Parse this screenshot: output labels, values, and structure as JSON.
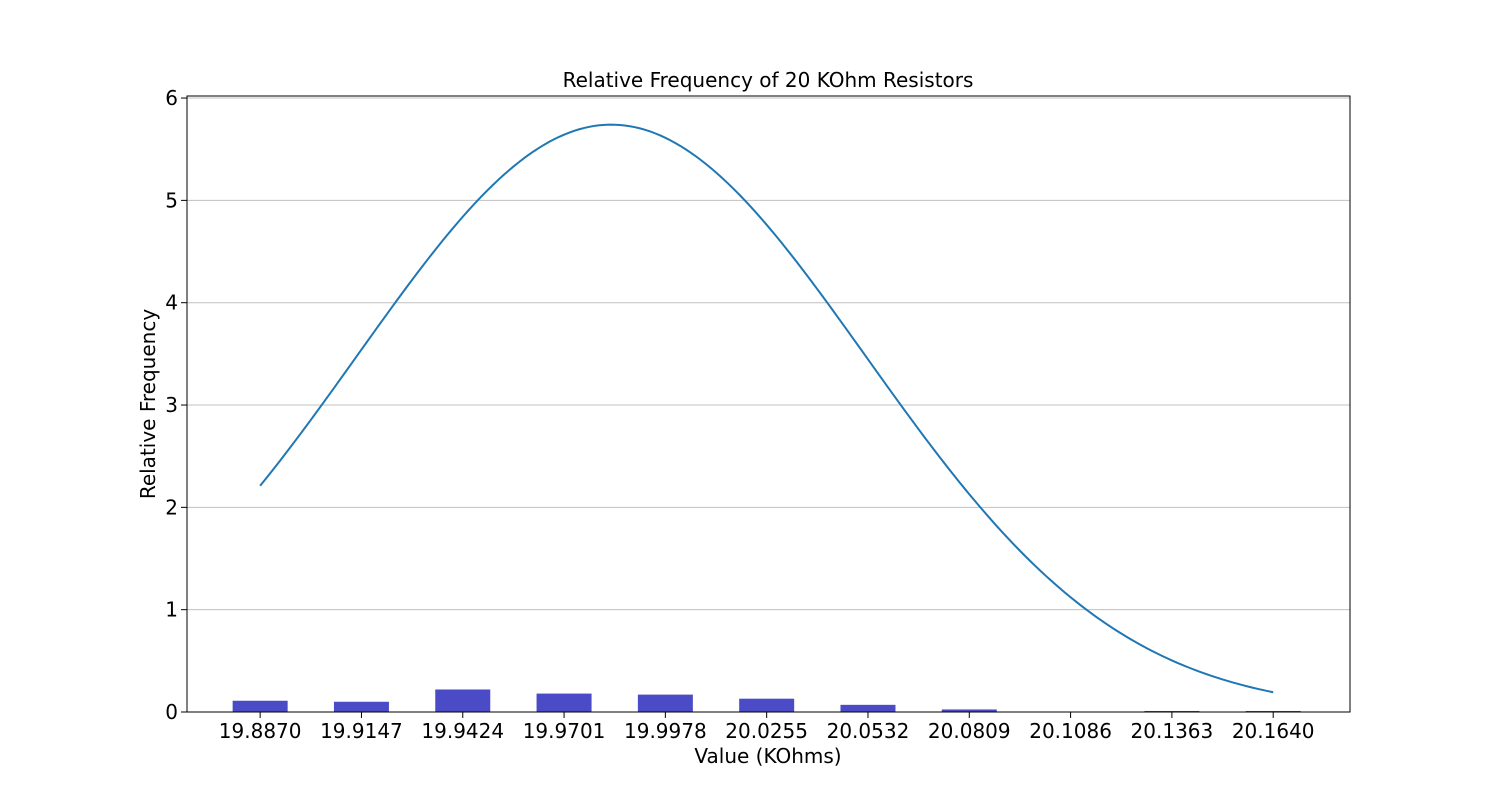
{
  "chart_data": {
    "type": "bar",
    "title": "Relative Frequency of 20 KOhm Resistors",
    "xlabel": "Value (KOhms)",
    "ylabel": "Relative Frequency",
    "categories": [
      "19.8870",
      "19.9147",
      "19.9424",
      "19.9701",
      "19.9978",
      "20.0255",
      "20.0532",
      "20.0809",
      "20.1086",
      "20.1363",
      "20.1640"
    ],
    "x": [
      19.887,
      19.9147,
      19.9424,
      19.9701,
      19.9978,
      20.0255,
      20.0532,
      20.0809,
      20.1086,
      20.1363,
      20.164
    ],
    "xlim": [
      19.867,
      20.185
    ],
    "ylim": [
      0,
      6.02
    ],
    "yticks": [
      0,
      1,
      2,
      3,
      4,
      5,
      6
    ],
    "grid": "y",
    "bar_color": "#4b4bc8",
    "line_color": "#1f77b4",
    "series": [
      {
        "type": "bar",
        "values": [
          0.11,
          0.1,
          0.22,
          0.18,
          0.17,
          0.13,
          0.07,
          0.025,
          0.0,
          0.01,
          0.01
        ]
      },
      {
        "type": "line",
        "curve": "normal-pdf",
        "mean": 19.983,
        "std": 0.0695,
        "x_range": [
          19.887,
          20.164
        ]
      }
    ]
  }
}
